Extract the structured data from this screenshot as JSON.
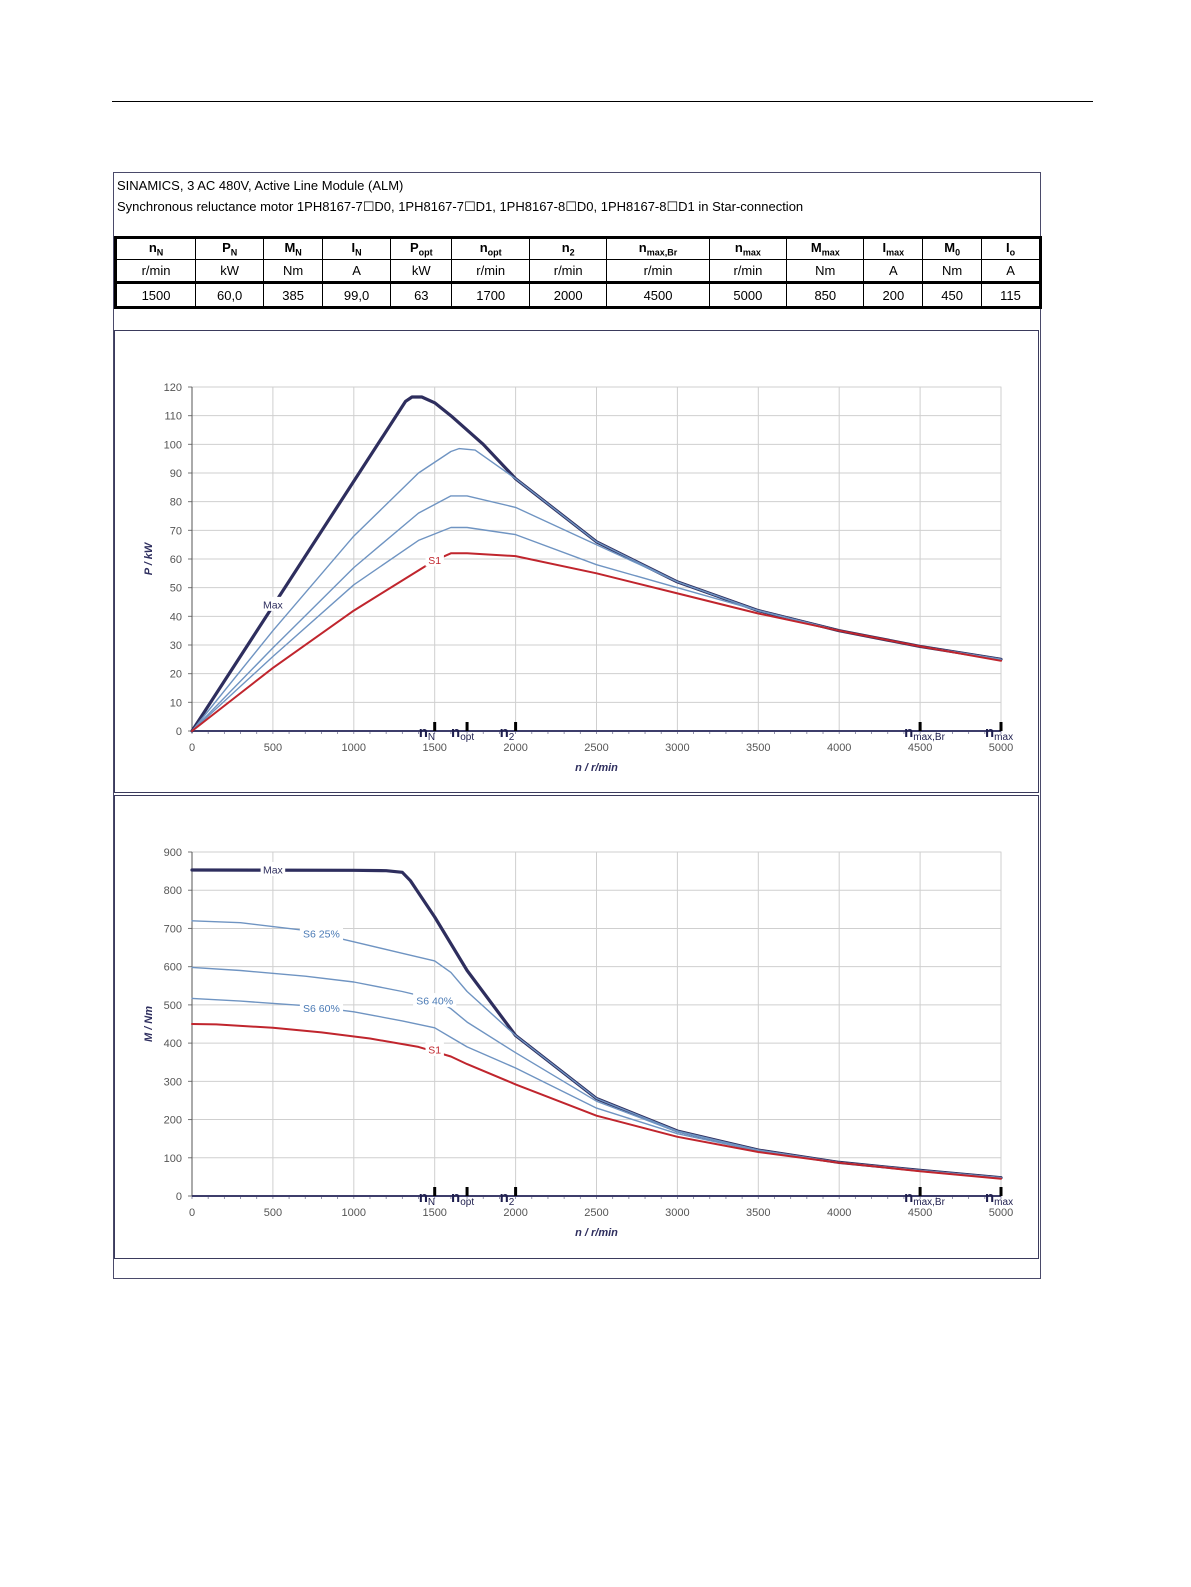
{
  "header": {
    "line1": "SINAMICS, 3 AC 480V, Active Line Module (ALM)",
    "line2": "Synchronous reluctance motor  1PH8167-7☐D0,  1PH8167-7☐D1,  1PH8167-8☐D0,  1PH8167-8☐D1   in Star-connection"
  },
  "spec_table": {
    "columns": [
      {
        "sym": "n",
        "sub": "N",
        "unit": "r/min",
        "value": "1500"
      },
      {
        "sym": "P",
        "sub": "N",
        "unit": "kW",
        "value": "60,0"
      },
      {
        "sym": "M",
        "sub": "N",
        "unit": "Nm",
        "value": "385"
      },
      {
        "sym": "I",
        "sub": "N",
        "unit": "A",
        "value": "99,0"
      },
      {
        "sym": "P",
        "sub": "opt",
        "unit": "kW",
        "value": "63"
      },
      {
        "sym": "n",
        "sub": "opt",
        "unit": "r/min",
        "value": "1700"
      },
      {
        "sym": "n",
        "sub": "2",
        "unit": "r/min",
        "value": "2000"
      },
      {
        "sym": "n",
        "sub": "max,Br",
        "unit": "r/min",
        "value": "4500"
      },
      {
        "sym": "n",
        "sub": "max",
        "unit": "r/min",
        "value": "5000"
      },
      {
        "sym": "M",
        "sub": "max",
        "unit": "Nm",
        "value": "850"
      },
      {
        "sym": "I",
        "sub": "max",
        "unit": "A",
        "value": "200"
      },
      {
        "sym": "M",
        "sub": "0",
        "unit": "Nm",
        "value": "450"
      },
      {
        "sym": "I",
        "sub": "o",
        "unit": "A",
        "value": "115"
      }
    ]
  },
  "chart_data": [
    {
      "type": "line",
      "title": "",
      "xlabel": "n / r/min",
      "ylabel": "P / kW",
      "xlim": [
        0,
        5000
      ],
      "ylim": [
        0,
        120
      ],
      "xticks": [
        "0",
        "500",
        "1000",
        "1500",
        "2000",
        "2500",
        "3000",
        "3500",
        "4000",
        "4500",
        "5000"
      ],
      "yticks": [
        "0",
        "10",
        "20",
        "30",
        "40",
        "50",
        "60",
        "70",
        "80",
        "90",
        "100",
        "110",
        "120"
      ],
      "grid": true,
      "markers": [
        {
          "base": "n",
          "sub": "N",
          "x": 1500
        },
        {
          "base": "n",
          "sub": "opt",
          "x": 1700
        },
        {
          "base": "n",
          "sub": "2",
          "x": 2000
        },
        {
          "base": "n",
          "sub": "max,Br",
          "x": 4500
        },
        {
          "base": "n",
          "sub": "max",
          "x": 5000
        }
      ],
      "series": [
        {
          "name": "Max",
          "label": "Max",
          "color": "#2e2e5e",
          "width": 3.2,
          "x": [
            0,
            1320,
            1360,
            1420,
            1500,
            1600,
            1800,
            2000,
            2500,
            3000,
            3500,
            4000,
            4500,
            5000
          ],
          "y": [
            0,
            115,
            116.5,
            116.5,
            114.5,
            110,
            100,
            88,
            66,
            52,
            42,
            35,
            29.5,
            25
          ]
        },
        {
          "name": "S6 25%",
          "label": "",
          "color": "#6f94c2",
          "width": 1.4,
          "x": [
            0,
            500,
            1000,
            1400,
            1600,
            1650,
            1750,
            2000,
            2500,
            3000,
            3500,
            4000,
            4500,
            5000
          ],
          "y": [
            0,
            35,
            68,
            90,
            97.5,
            98.5,
            98,
            88,
            66,
            52,
            42,
            35,
            29.5,
            25
          ]
        },
        {
          "name": "S6 40%",
          "label": "",
          "color": "#6f94c2",
          "width": 1.4,
          "x": [
            0,
            500,
            1000,
            1400,
            1600,
            1700,
            2000,
            2500,
            3000,
            3500,
            4000,
            4500,
            5000
          ],
          "y": [
            0,
            29,
            57,
            76,
            82,
            82,
            78,
            65,
            52,
            42,
            35,
            29.5,
            25
          ]
        },
        {
          "name": "S6 60%",
          "label": "",
          "color": "#6f94c2",
          "width": 1.4,
          "x": [
            0,
            500,
            1000,
            1400,
            1600,
            1700,
            2000,
            2500,
            3000,
            3500,
            4000,
            4500,
            5000
          ],
          "y": [
            0,
            26,
            51,
            66.5,
            71,
            71,
            68.5,
            58,
            50,
            42,
            35,
            29.5,
            25
          ]
        },
        {
          "name": "S1",
          "label": "S1",
          "color": "#c0252d",
          "width": 2,
          "x": [
            0,
            500,
            1000,
            1500,
            1600,
            1700,
            2000,
            2500,
            3000,
            3500,
            4000,
            4500,
            5000
          ],
          "y": [
            0,
            22,
            42,
            59.5,
            62,
            62,
            61,
            55,
            48,
            41,
            35,
            29.5,
            24.5
          ]
        }
      ],
      "annotations": [
        {
          "text": "Max",
          "x": 500,
          "y": 44
        },
        {
          "text": "S1",
          "x": 1500,
          "y": 59.5
        }
      ]
    },
    {
      "type": "line",
      "title": "",
      "xlabel": "n / r/min",
      "ylabel": "M / Nm",
      "xlim": [
        0,
        5000
      ],
      "ylim": [
        0,
        900
      ],
      "xticks": [
        "0",
        "500",
        "1000",
        "1500",
        "2000",
        "2500",
        "3000",
        "3500",
        "4000",
        "4500",
        "5000"
      ],
      "yticks": [
        "0",
        "100",
        "200",
        "300",
        "400",
        "500",
        "600",
        "700",
        "800",
        "900"
      ],
      "grid": true,
      "markers": [
        {
          "base": "n",
          "sub": "N",
          "x": 1500
        },
        {
          "base": "n",
          "sub": "opt",
          "x": 1700
        },
        {
          "base": "n",
          "sub": "2",
          "x": 2000
        },
        {
          "base": "n",
          "sub": "max,Br",
          "x": 4500
        },
        {
          "base": "n",
          "sub": "max",
          "x": 5000
        }
      ],
      "series": [
        {
          "name": "Max",
          "label": "Max",
          "color": "#2e2e5e",
          "width": 3.2,
          "x": [
            0,
            1000,
            1200,
            1300,
            1350,
            1500,
            1700,
            2000,
            2500,
            3000,
            3500,
            4000,
            4500,
            5000
          ],
          "y": [
            853,
            852,
            851,
            847,
            825,
            730,
            590,
            420,
            255,
            170,
            120,
            88,
            67,
            48
          ]
        },
        {
          "name": "S6 25%",
          "label": "S6 25%",
          "color": "#6f94c2",
          "width": 1.4,
          "x": [
            0,
            300,
            700,
            1000,
            1300,
            1500,
            1600,
            1700,
            2000,
            2500,
            3000,
            3500,
            4000,
            4500,
            5000
          ],
          "y": [
            720,
            715,
            695,
            665,
            635,
            615,
            585,
            535,
            420,
            255,
            170,
            120,
            88,
            67,
            48
          ]
        },
        {
          "name": "S6 40%",
          "label": "S6 40%",
          "color": "#6f94c2",
          "width": 1.4,
          "x": [
            0,
            300,
            700,
            1000,
            1300,
            1500,
            1600,
            1700,
            2000,
            2500,
            3000,
            3500,
            4000,
            4500,
            5000
          ],
          "y": [
            598,
            590,
            575,
            560,
            535,
            515,
            490,
            455,
            375,
            248,
            168,
            120,
            88,
            67,
            48
          ]
        },
        {
          "name": "S6 60%",
          "label": "S6 60%",
          "color": "#6f94c2",
          "width": 1.4,
          "x": [
            0,
            300,
            700,
            1000,
            1300,
            1500,
            1600,
            1700,
            2000,
            2500,
            3000,
            3500,
            4000,
            4500,
            5000
          ],
          "y": [
            517,
            510,
            498,
            482,
            458,
            440,
            415,
            390,
            335,
            230,
            163,
            118,
            88,
            67,
            48
          ]
        },
        {
          "name": "S1",
          "label": "S1",
          "color": "#c0252d",
          "width": 2,
          "x": [
            0,
            150,
            500,
            800,
            1100,
            1400,
            1600,
            1700,
            2000,
            2500,
            3000,
            3500,
            4000,
            4500,
            5000
          ],
          "y": [
            450,
            449,
            440,
            428,
            412,
            390,
            365,
            345,
            292,
            210,
            155,
            115,
            87,
            65,
            45
          ]
        }
      ],
      "annotations": [
        {
          "text": "Max",
          "x": 500,
          "y": 853
        },
        {
          "text": "S6 25%",
          "x": 800,
          "y": 685
        },
        {
          "text": "S6 40%",
          "x": 1500,
          "y": 510
        },
        {
          "text": "S6 60%",
          "x": 800,
          "y": 490
        },
        {
          "text": "S1",
          "x": 1500,
          "y": 382
        }
      ]
    }
  ]
}
